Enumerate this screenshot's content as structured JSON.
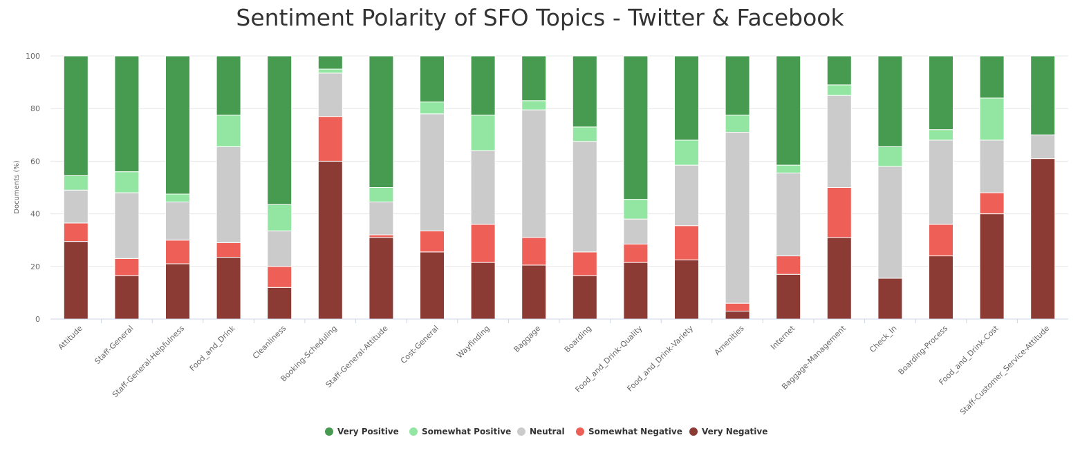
{
  "chart_data": {
    "type": "bar",
    "stacked": true,
    "title": "Sentiment Polarity of SFO Topics - Twitter & Facebook",
    "ylabel": "Documents (%)",
    "xlabel": "",
    "ylim": [
      0,
      100
    ],
    "yticks": [
      0,
      20,
      40,
      60,
      80,
      100
    ],
    "grid": true,
    "legend_position": "bottom",
    "categories": [
      "Attitude",
      "Staff-General",
      "Staff-General-Helpfulness",
      "Food_and_Drink",
      "Cleanliness",
      "Booking-Scheduling",
      "Staff-General-Attitude",
      "Cost-General",
      "Wayfinding",
      "Baggage",
      "Boarding",
      "Food_and_Drink-Quality",
      "Food_and_Drink-Variety",
      "Amenities",
      "Internet",
      "Baggage-Management",
      "Check_In",
      "Boarding-Process",
      "Food_and_Drink-Cost",
      "Staff-Customer_Service-Attitude"
    ],
    "series": [
      {
        "name": "Very Negative",
        "color": "#8b3a34",
        "values": [
          29.5,
          16.5,
          21,
          23.5,
          12,
          60,
          31,
          25.5,
          21.5,
          20.5,
          16.5,
          21.5,
          22.5,
          3,
          17,
          31,
          15.5,
          24,
          40,
          61
        ]
      },
      {
        "name": "Somewhat Negative",
        "color": "#ee5f57",
        "values": [
          7,
          6.5,
          9,
          5.5,
          8,
          17,
          1,
          8,
          14.5,
          10.5,
          9,
          7,
          13,
          3,
          7,
          19,
          0,
          12,
          8,
          0
        ]
      },
      {
        "name": "Neutral",
        "color": "#cbcbcb",
        "values": [
          12.5,
          25,
          14.5,
          36.5,
          13.5,
          16.5,
          12.5,
          44.5,
          28,
          48.5,
          42,
          9.5,
          23,
          65,
          31.5,
          35,
          42.5,
          32,
          20,
          9
        ]
      },
      {
        "name": "Somewhat Positive",
        "color": "#93e6a2",
        "values": [
          5.5,
          8,
          3,
          12,
          10,
          1.5,
          5.5,
          4.5,
          13.5,
          3.5,
          5.5,
          7.5,
          9.5,
          6.5,
          3,
          4,
          7.5,
          4,
          16,
          0
        ]
      },
      {
        "name": "Very Positive",
        "color": "#469b51",
        "values": [
          45.5,
          44,
          52.5,
          22.5,
          56.5,
          5,
          50,
          17.5,
          22.5,
          17,
          27,
          54.5,
          32,
          22.5,
          41.5,
          11,
          34.5,
          28,
          16,
          30
        ]
      }
    ],
    "legend_order": [
      "Very Positive",
      "Somewhat Positive",
      "Neutral",
      "Somewhat Negative",
      "Very Negative"
    ]
  }
}
